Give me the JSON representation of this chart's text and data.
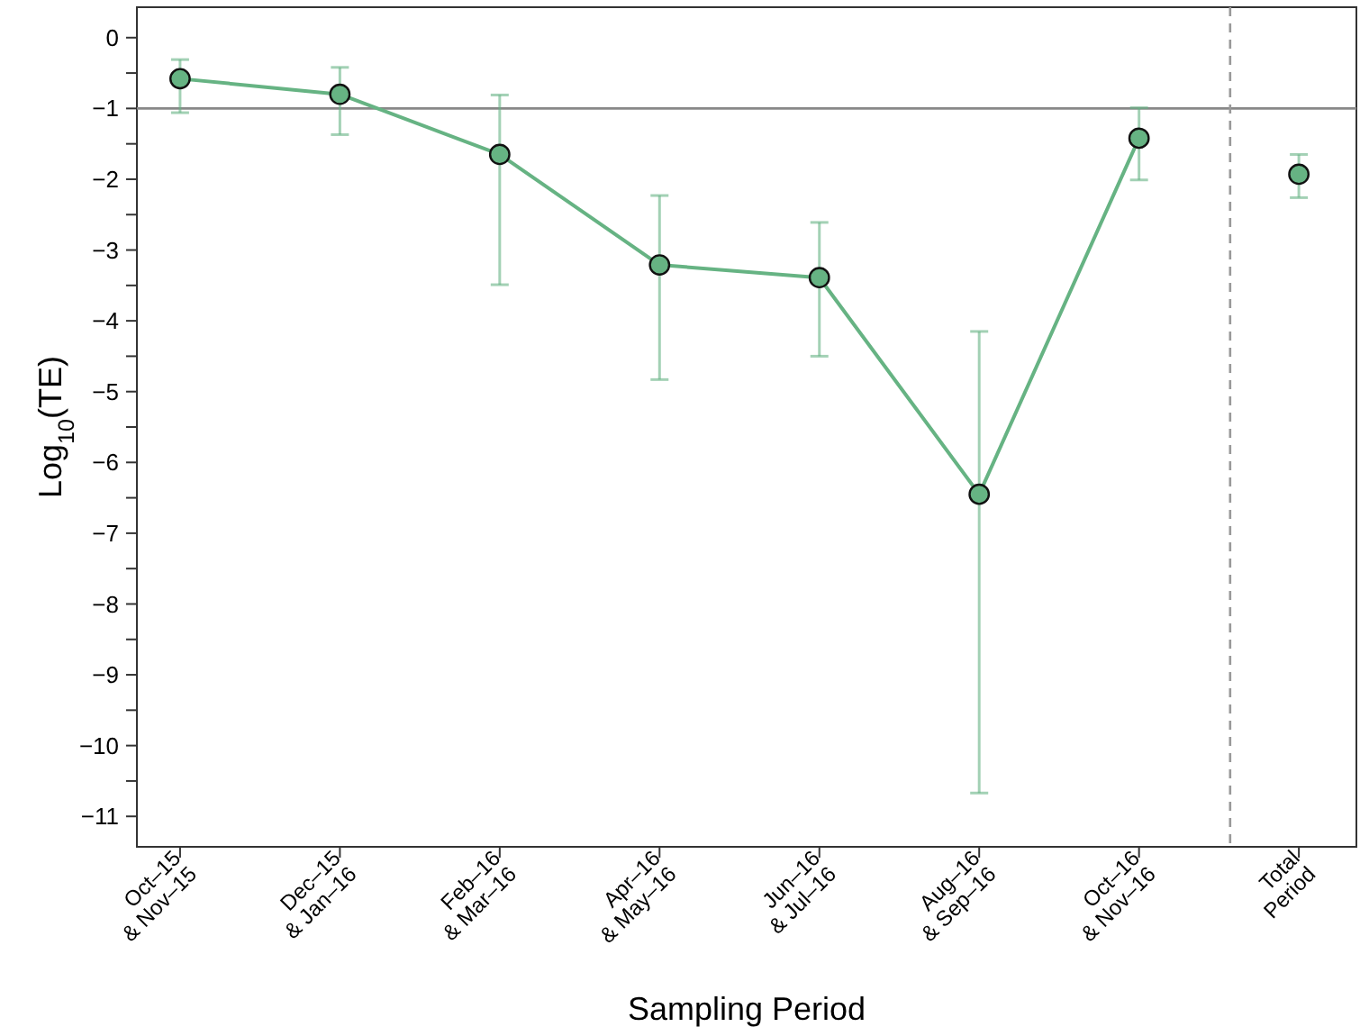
{
  "chart_data": {
    "type": "line",
    "xlabel": "Sampling Period",
    "ylabel": "Log$_{10}$(TE)",
    "categories": [
      "Oct–15\n& Nov–15",
      "Dec–15\n& Jan–16",
      "Feb–16\n& Mar–16",
      "Apr–16\n& May–16",
      "Jun–16\n& Jul–16",
      "Aug–16\n& Sep–16",
      "Oct–16\n& Nov–16",
      "Total\nPeriod"
    ],
    "ylim": [
      -11.43,
      0.43
    ],
    "yticks": [
      {
        "value": 0,
        "label": "0"
      },
      {
        "value": -0.5,
        "label": null
      },
      {
        "value": -1,
        "label": "−1"
      },
      {
        "value": -1.5,
        "label": null
      },
      {
        "value": -2,
        "label": "−2"
      },
      {
        "value": -2.5,
        "label": null
      },
      {
        "value": -3,
        "label": "−3"
      },
      {
        "value": -3.5,
        "label": null
      },
      {
        "value": -4,
        "label": "−4"
      },
      {
        "value": -4.5,
        "label": null
      },
      {
        "value": -5,
        "label": "−5"
      },
      {
        "value": -5.5,
        "label": null
      },
      {
        "value": -6,
        "label": "−6"
      },
      {
        "value": -6.5,
        "label": null
      },
      {
        "value": -7,
        "label": "−7"
      },
      {
        "value": -7.5,
        "label": null
      },
      {
        "value": -8,
        "label": "−8"
      },
      {
        "value": -8.5,
        "label": null
      },
      {
        "value": -9,
        "label": "−9"
      },
      {
        "value": -9.5,
        "label": null
      },
      {
        "value": -10,
        "label": "−10"
      },
      {
        "value": -10.5,
        "label": null
      },
      {
        "value": -11,
        "label": "−11"
      }
    ],
    "series": [
      {
        "color": "#66b383",
        "values": [
          -0.58,
          -0.8,
          -1.65,
          -3.21,
          -3.39,
          -6.45,
          -1.42,
          null
        ],
        "errors": [
          [
            -1.06,
            -0.31
          ],
          [
            -1.37,
            -0.42
          ],
          [
            -3.49,
            -0.81
          ],
          [
            -4.83,
            -2.23
          ],
          [
            -4.5,
            -2.61
          ],
          [
            -10.67,
            -4.15
          ],
          [
            -2.01,
            -0.99
          ],
          null
        ]
      },
      {
        "type": "scatter",
        "color": "#66b383",
        "values": [
          null,
          null,
          null,
          null,
          null,
          null,
          null,
          -1.93
        ],
        "errors": [
          null,
          null,
          null,
          null,
          null,
          null,
          null,
          [
            -2.26,
            -1.65
          ]
        ]
      }
    ],
    "ref_lines": [
      {
        "axis": "y",
        "value": -1,
        "color": "#888888",
        "line_style": "solid"
      }
    ],
    "marker": "circle",
    "line_style": "solid",
    "grid": false
  }
}
